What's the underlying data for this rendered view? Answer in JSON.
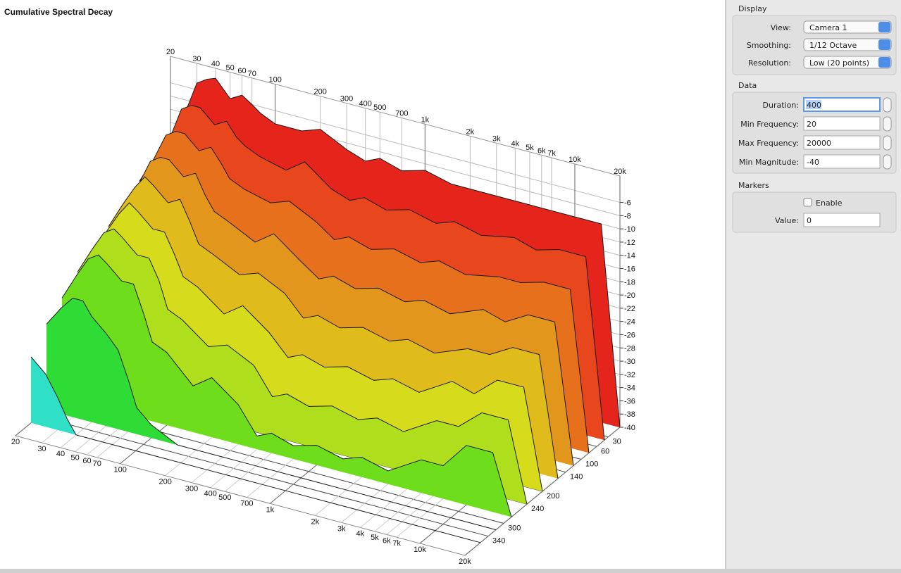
{
  "title": "Cumulative Spectral Decay",
  "plot": {
    "frequency_axis": {
      "lim": [
        20,
        20000
      ],
      "ticks": [
        20,
        30,
        40,
        50,
        60,
        70,
        100,
        200,
        300,
        400,
        500,
        700,
        {
          "value": 1000,
          "label": "1k"
        },
        {
          "value": 2000,
          "label": "2k"
        },
        {
          "value": 3000,
          "label": "3k"
        },
        {
          "value": 4000,
          "label": "4k"
        },
        {
          "value": 5000,
          "label": "5k"
        },
        {
          "value": 6000,
          "label": "6k"
        },
        {
          "value": 7000,
          "label": "7k"
        },
        {
          "value": 10000,
          "label": "10k"
        },
        {
          "value": 20000,
          "label": "20k"
        }
      ]
    },
    "magnitude_axis": {
      "lim": [
        -40,
        -2
      ],
      "ticks": [
        -6,
        -8,
        -10,
        -12,
        -14,
        -16,
        -18,
        -20,
        -22,
        -24,
        -26,
        -28,
        -30,
        -32,
        -34,
        -36,
        -38,
        -40
      ]
    },
    "time_axis": {
      "lim": [
        0,
        400
      ],
      "ticks": [
        30,
        60,
        100,
        140,
        200,
        240,
        300,
        340
      ]
    },
    "frequencies": [
      20,
      25,
      30,
      35,
      40,
      50,
      60,
      70,
      80,
      100,
      150,
      200,
      300,
      400,
      500,
      700,
      1000,
      1500,
      2000,
      3000,
      5000,
      7000,
      10000,
      15000,
      20000
    ],
    "slices": [
      {
        "time": 0,
        "color": "#e5241b",
        "values": [
          -14,
          -10,
          -5,
          -4,
          -3.5,
          -6,
          -5,
          -6,
          -7,
          -8,
          -8,
          -7,
          -9,
          -10,
          -9,
          -10,
          -9,
          -10,
          -10,
          -10,
          -10,
          -10,
          -10,
          -10,
          -40
        ]
      },
      {
        "time": 40,
        "color": "#e8461c",
        "values": [
          -16,
          -12,
          -7,
          -6,
          -6,
          -8,
          -7,
          -9,
          -10,
          -11,
          -12,
          -10,
          -13,
          -14,
          -13,
          -14,
          -13,
          -14,
          -13,
          -14,
          -13,
          -14,
          -13,
          -13,
          -40
        ]
      },
      {
        "time": 80,
        "color": "#e6701c",
        "values": [
          -17,
          -13,
          -9,
          -8,
          -8,
          -10,
          -9,
          -11,
          -13,
          -14,
          -15,
          -14,
          -16,
          -18,
          -17,
          -18,
          -17,
          -18,
          -17,
          -18,
          -17,
          -17,
          -16,
          -16,
          -40
        ]
      },
      {
        "time": 120,
        "color": "#e3961c",
        "values": [
          -19,
          -15,
          -11,
          -10,
          -10,
          -12,
          -11,
          -14,
          -16,
          -17,
          -19,
          -17,
          -20,
          -22,
          -21,
          -22,
          -21,
          -22,
          -21,
          -22,
          -20,
          -21,
          -19,
          -19,
          -40
        ]
      },
      {
        "time": 160,
        "color": "#e0bb1c",
        "values": [
          -20,
          -16,
          -13,
          -11,
          -12,
          -14,
          -13,
          -16,
          -19,
          -20,
          -22,
          -21,
          -23,
          -26,
          -25,
          -26,
          -25,
          -26,
          -25,
          -26,
          -24,
          -24,
          -22,
          -22,
          -40
        ]
      },
      {
        "time": 200,
        "color": "#d6dc1c",
        "values": [
          -22,
          -18,
          -15,
          -13,
          -14,
          -16,
          -16,
          -19,
          -22,
          -23,
          -26,
          -24,
          -27,
          -30,
          -29,
          -30,
          -29,
          -30,
          -29,
          -30,
          -27,
          -28,
          -25,
          -25,
          -40
        ]
      },
      {
        "time": 240,
        "color": "#aede1c",
        "values": [
          -23,
          -19,
          -16,
          -15,
          -16,
          -18,
          -18,
          -21,
          -25,
          -26,
          -29,
          -28,
          -30,
          -34,
          -33,
          -34,
          -33,
          -34,
          -33,
          -34,
          -31,
          -31,
          -28,
          -28,
          -40
        ]
      },
      {
        "time": 280,
        "color": "#6ede1c",
        "values": [
          -25,
          -21,
          -18,
          -17,
          -18,
          -20,
          -20,
          -24,
          -28,
          -29,
          -33,
          -31,
          -34,
          -38,
          -37,
          -38,
          -37,
          -38,
          -37,
          -38,
          -35,
          -35,
          -31,
          -31,
          -40
        ]
      },
      {
        "time": 320,
        "color": "#2fdc36",
        "values": [
          -27,
          -24,
          -22,
          -22,
          -24,
          -26,
          -28,
          -32,
          -36,
          -38,
          -40,
          -40,
          -40,
          -40,
          -40,
          -40,
          -40,
          -40,
          -40,
          -40,
          -40,
          -40,
          -40,
          -40,
          -40
        ]
      },
      {
        "time": 360,
        "color": "#2fe0c6",
        "values": [
          -30,
          -32,
          -35,
          -38,
          -40,
          -40,
          -40,
          -40,
          -40,
          -40,
          -40,
          -40,
          -40,
          -40,
          -40,
          -40,
          -40,
          -40,
          -40,
          -40,
          -40,
          -40,
          -40,
          -40,
          -40
        ]
      }
    ]
  },
  "panel": {
    "display": {
      "title": "Display",
      "fields": [
        {
          "label": "View:",
          "value": "Camera 1"
        },
        {
          "label": "Smoothing:",
          "value": "1/12 Octave"
        },
        {
          "label": "Resolution:",
          "value": "Low (20 points)"
        }
      ]
    },
    "data": {
      "title": "Data",
      "fields": [
        {
          "label": "Duration:",
          "value": "400"
        },
        {
          "label": "Min Frequency:",
          "value": "20"
        },
        {
          "label": "Max Frequency:",
          "value": "20000"
        },
        {
          "label": "Min Magnitude:",
          "value": "-40"
        }
      ]
    },
    "markers": {
      "title": "Markers",
      "checkbox": "Enable",
      "fields": [
        {
          "label": "Value:",
          "value": "0"
        }
      ]
    }
  }
}
